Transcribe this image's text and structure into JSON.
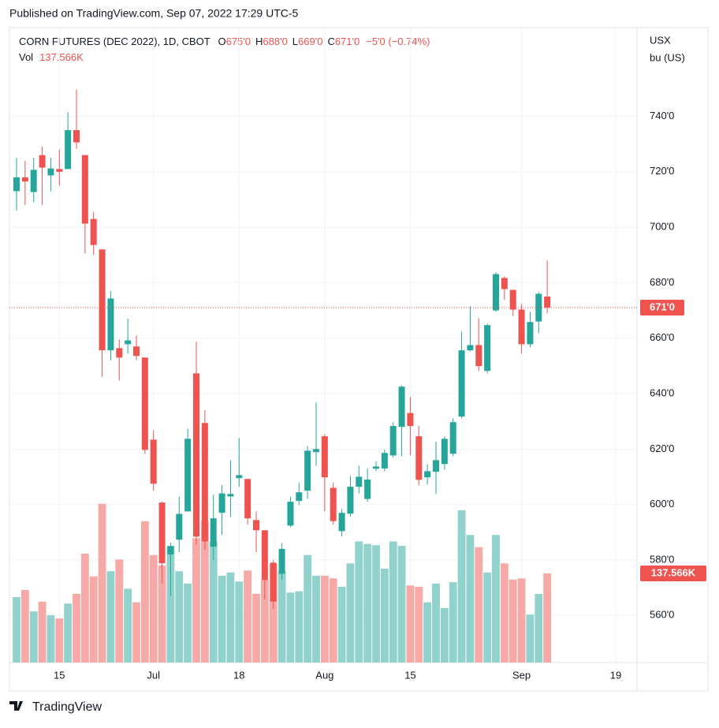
{
  "header": {
    "published": "Published on TradingView.com, Sep 07, 2022 17:29 UTC-5"
  },
  "chart_data": {
    "type": "candlestick",
    "title": "CORN FUTURES (DEC 2022), 1D, CBOT",
    "ohlc_legend": [
      {
        "label": "O",
        "value": "675'0"
      },
      {
        "label": "H",
        "value": "688'0"
      },
      {
        "label": "L",
        "value": "669'0"
      },
      {
        "label": "C",
        "value": "671'0"
      }
    ],
    "change": "−5'0 (−0.74%)",
    "volume_label": "Vol",
    "volume_last_label": "137.566K",
    "last_price_label": "671'0",
    "y_unit": [
      "USX",
      "bu (US)"
    ],
    "categories": [
      null,
      null,
      null,
      null,
      null,
      "15",
      null,
      null,
      null,
      null,
      null,
      null,
      null,
      null,
      null,
      null,
      "Jul",
      null,
      null,
      null,
      null,
      null,
      null,
      null,
      null,
      null,
      "18",
      null,
      null,
      null,
      null,
      null,
      null,
      null,
      null,
      null,
      "Aug",
      null,
      null,
      null,
      null,
      null,
      null,
      null,
      null,
      null,
      "15",
      null,
      null,
      null,
      null,
      null,
      null,
      null,
      null,
      null,
      null,
      null,
      null,
      "Sep",
      null,
      null,
      null,
      null,
      null,
      null,
      null,
      null,
      null,
      null,
      "19",
      null
    ],
    "open": [
      713,
      718,
      712.7,
      726,
      718.7,
      721,
      721,
      735,
      726,
      703,
      692,
      655.6,
      656.4,
      657.8,
      657,
      653,
      623.4,
      600.7,
      582,
      587.3,
      597.5,
      647.3,
      629.4,
      584.8,
      597,
      602.9,
      609.5,
      609.2,
      594.4,
      590.7,
      579,
      575,
      592.4,
      601.3,
      605,
      618.9,
      624.6,
      606,
      590.4,
      596.7,
      606.4,
      602,
      612.9,
      613,
      617.7,
      628,
      633,
      624.6,
      609.8,
      611.8,
      614.6,
      618.3,
      631.7,
      655.6,
      657.5,
      648.2,
      670,
      681.7,
      677.4,
      670.3,
      657.8,
      666,
      675,
      null,
      null,
      null,
      null,
      null,
      null,
      null,
      null,
      null
    ],
    "high": [
      725,
      724,
      725,
      729,
      725,
      728,
      741.5,
      749.7,
      726,
      705.6,
      692,
      677,
      659.5,
      667,
      661,
      653,
      626.8,
      601,
      586.2,
      602.8,
      627.4,
      658.7,
      634,
      603.5,
      607,
      616,
      624,
      609.2,
      597.5,
      590.7,
      580,
      586,
      602.8,
      607.8,
      621,
      636.8,
      625.4,
      607.8,
      598.4,
      610.3,
      614,
      613,
      615.5,
      619.8,
      629.7,
      643,
      638.8,
      628.3,
      614.6,
      622.6,
      624.6,
      631,
      662.4,
      671.5,
      667.2,
      665.2,
      683.7,
      682.3,
      677.4,
      672.3,
      669.5,
      676.6,
      688,
      null,
      null,
      null,
      null,
      null,
      null,
      null,
      null,
      null
    ],
    "low": [
      706,
      708,
      709,
      708,
      713,
      715,
      721,
      728.3,
      690.5,
      690,
      646,
      652,
      644.7,
      654.4,
      652,
      618.3,
      605,
      571.4,
      567,
      582.8,
      597.5,
      585.6,
      583.6,
      580,
      589,
      595.5,
      606.4,
      592.7,
      582.8,
      565.7,
      562.3,
      572.8,
      591.8,
      599.8,
      602,
      614,
      597.5,
      592.7,
      588.5,
      595.6,
      604,
      601,
      612,
      612,
      616.9,
      617.4,
      617.7,
      606.9,
      607.2,
      603.8,
      612.6,
      617.5,
      631.1,
      655.3,
      648.2,
      647.3,
      669.5,
      673.8,
      668,
      654.4,
      656.7,
      661.8,
      669,
      null,
      null,
      null,
      null,
      null,
      null,
      null,
      null,
      null
    ],
    "close": [
      718,
      716.5,
      720.7,
      721.5,
      721.2,
      720,
      735,
      730.6,
      701.3,
      693.6,
      655.6,
      674.3,
      653,
      659.2,
      653.6,
      619.7,
      607.5,
      578.8,
      585,
      596.6,
      623.7,
      588.4,
      586.7,
      595,
      604,
      603.8,
      610.6,
      595,
      590.7,
      572.8,
      565,
      584,
      601,
      604.4,
      619.4,
      620,
      609.8,
      594,
      597,
      606.4,
      610,
      609,
      613.7,
      618.6,
      628.3,
      642.5,
      628.3,
      608.9,
      612,
      616,
      623.7,
      629.7,
      655.6,
      657.5,
      649.9,
      664.7,
      683.1,
      677.7,
      670.3,
      657.8,
      665.8,
      676,
      671,
      null,
      null,
      null,
      null,
      null,
      null,
      null,
      null,
      null
    ],
    "volume": [
      101000,
      112000,
      79000,
      94000,
      73000,
      68000,
      91000,
      106000,
      168000,
      133000,
      245000,
      141000,
      159000,
      114000,
      93000,
      218000,
      166000,
      150000,
      180000,
      141000,
      122000,
      192000,
      219000,
      187000,
      134000,
      139000,
      125000,
      142000,
      106000,
      128000,
      152000,
      141000,
      108000,
      110000,
      166000,
      134000,
      134000,
      130000,
      117000,
      153000,
      187000,
      183000,
      181000,
      145000,
      187000,
      180000,
      119000,
      117000,
      93000,
      122000,
      84000,
      124000,
      235000,
      197000,
      178000,
      139000,
      197000,
      153000,
      128000,
      130000,
      74000,
      106000,
      137566,
      null,
      null,
      null,
      null,
      null,
      null,
      null,
      null,
      null
    ],
    "up_color": "#26a69a",
    "down_color": "#ef5350",
    "volume_up_color": "#92d2cc",
    "volume_down_color": "#f7a9a7",
    "ylim": [
      543,
      772
    ],
    "yticks": [
      {
        "value": 560,
        "label": "560'0"
      },
      {
        "value": 580,
        "label": "580'0"
      },
      {
        "value": 600,
        "label": "600'0"
      },
      {
        "value": 620,
        "label": "620'0"
      },
      {
        "value": 640,
        "label": "640'0"
      },
      {
        "value": 660,
        "label": "660'0"
      },
      {
        "value": 680,
        "label": "680'0"
      },
      {
        "value": 700,
        "label": "700'0"
      },
      {
        "value": 720,
        "label": "720'0"
      },
      {
        "value": 740,
        "label": "740'0"
      }
    ],
    "volume_ylim": [
      0,
      980000
    ],
    "grid": true
  },
  "footer": {
    "brand": "TradingView"
  }
}
